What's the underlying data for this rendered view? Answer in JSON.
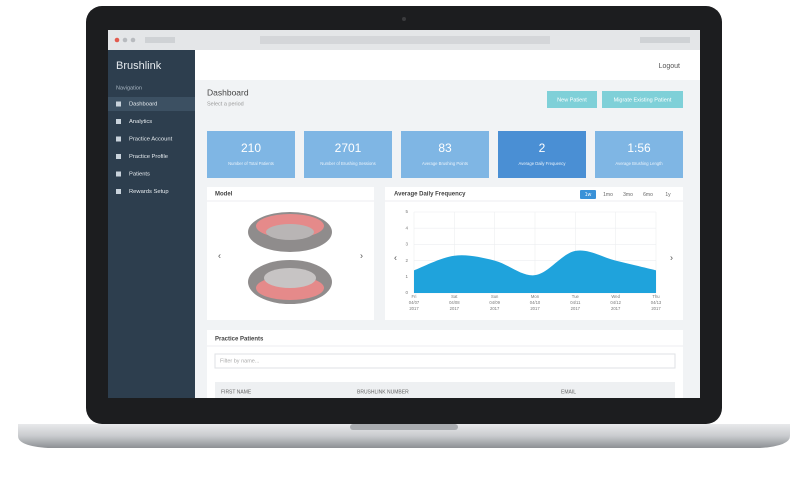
{
  "sidebar": {
    "brand": "Brushlink",
    "section": "Navigation",
    "items": [
      "Dashboard",
      "Analytics",
      "Practice Account",
      "Practice Profile",
      "Patients",
      "Rewards Setup"
    ]
  },
  "header": {
    "logout": "Logout",
    "title": "Dashboard",
    "subtitle": "Select a period",
    "buttons": [
      "New Patient",
      "Migrate Existing Patient"
    ]
  },
  "stats": [
    {
      "value": "210",
      "label": "Number of Total Patients"
    },
    {
      "value": "2701",
      "label": "Number of Brushing Sessions"
    },
    {
      "value": "83",
      "label": "Average Brushing Points"
    },
    {
      "value": "2",
      "label": "Average Daily Frequency"
    },
    {
      "value": "1:56",
      "label": "Average Brushing Length"
    }
  ],
  "model_panel": {
    "title": "Model"
  },
  "frequency_chart": {
    "type": "area",
    "title": "Average Daily Frequency",
    "ranges": [
      "1w",
      "1mo",
      "3mo",
      "6mo",
      "1y"
    ],
    "categories": [
      {
        "day": "Fri",
        "date": "04/07",
        "year": "2017"
      },
      {
        "day": "Sat",
        "date": "04/08",
        "year": "2017"
      },
      {
        "day": "Sun",
        "date": "04/09",
        "year": "2017"
      },
      {
        "day": "Mon",
        "date": "04/10",
        "year": "2017"
      },
      {
        "day": "Tue",
        "date": "04/11",
        "year": "2017"
      },
      {
        "day": "Wed",
        "date": "04/12",
        "year": "2017"
      },
      {
        "day": "Thu",
        "date": "04/13",
        "year": "2017"
      }
    ],
    "values": [
      1.4,
      2.3,
      2.0,
      1.1,
      2.6,
      2.0,
      1.4
    ],
    "color": "#1fa3dc",
    "ylim": [
      0,
      5
    ],
    "yticks": [
      0,
      1,
      2,
      3,
      4,
      5
    ],
    "grid": true
  },
  "patients_panel": {
    "title": "Practice Patients",
    "filter_placeholder": "Filter by name...",
    "columns": [
      "FIRST NAME",
      "BRUSHLINK NUMBER",
      "EMAIL"
    ]
  }
}
